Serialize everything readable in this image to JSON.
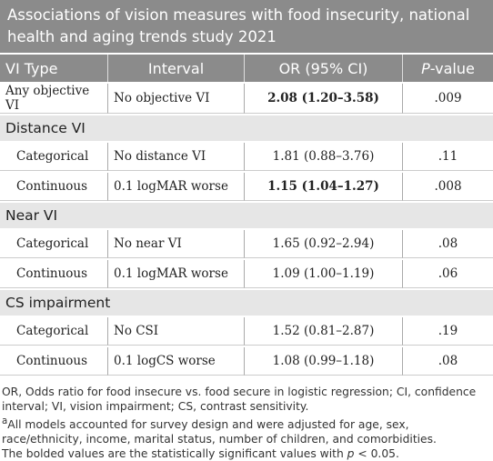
{
  "title": "Associations of vision measures with food insecurity, national health and aging trends study 2021",
  "header": {
    "vi_type": "VI Type",
    "interval": "Interval",
    "or_ci": "OR (95% CI)",
    "p_value": {
      "italic": "P",
      "rest": "-value"
    }
  },
  "rows": [
    {
      "cells": [
        "Any objective VI",
        "No objective VI",
        "2.08 (1.20–3.58)",
        ".009"
      ],
      "bold": true
    },
    {
      "section": "Distance VI"
    },
    {
      "cells": [
        "Categorical",
        "No distance VI",
        "1.81 (0.88–3.76)",
        ".11"
      ],
      "bold": false
    },
    {
      "cells": [
        "Continuous",
        "0.1 logMAR worse",
        "1.15 (1.04–1.27)",
        ".008"
      ],
      "bold": true
    },
    {
      "section": "Near VI"
    },
    {
      "cells": [
        "Categorical",
        "No near VI",
        "1.65 (0.92–2.94)",
        ".08"
      ],
      "bold": false
    },
    {
      "cells": [
        "Continuous",
        "0.1 logMAR worse",
        "1.09 (1.00–1.19)",
        ".06"
      ],
      "bold": false
    },
    {
      "section": "CS impairment"
    },
    {
      "cells": [
        "Categorical",
        "No CSI",
        "1.52 (0.81–2.87)",
        ".19"
      ],
      "bold": false
    },
    {
      "cells": [
        "Continuous",
        "0.1 logCS worse",
        "1.08 (0.99–1.18)",
        ".08"
      ],
      "bold": false
    }
  ],
  "notes": {
    "abbreviations": "OR, Odds ratio for food insecure vs. food secure in logistic regression; CI, confidence interval; VI, vision impairment; CS, contrast sensitivity.",
    "footnote_mark": "a",
    "footnote": "All models accounted for survey design and were adjusted for age, sex, race/ethnicity, income, marital status, number of children, and comorbidities.",
    "bold_note": {
      "before": "The bolded values are the statistically significant values with ",
      "italic": "p",
      "after": " < 0.05."
    }
  }
}
